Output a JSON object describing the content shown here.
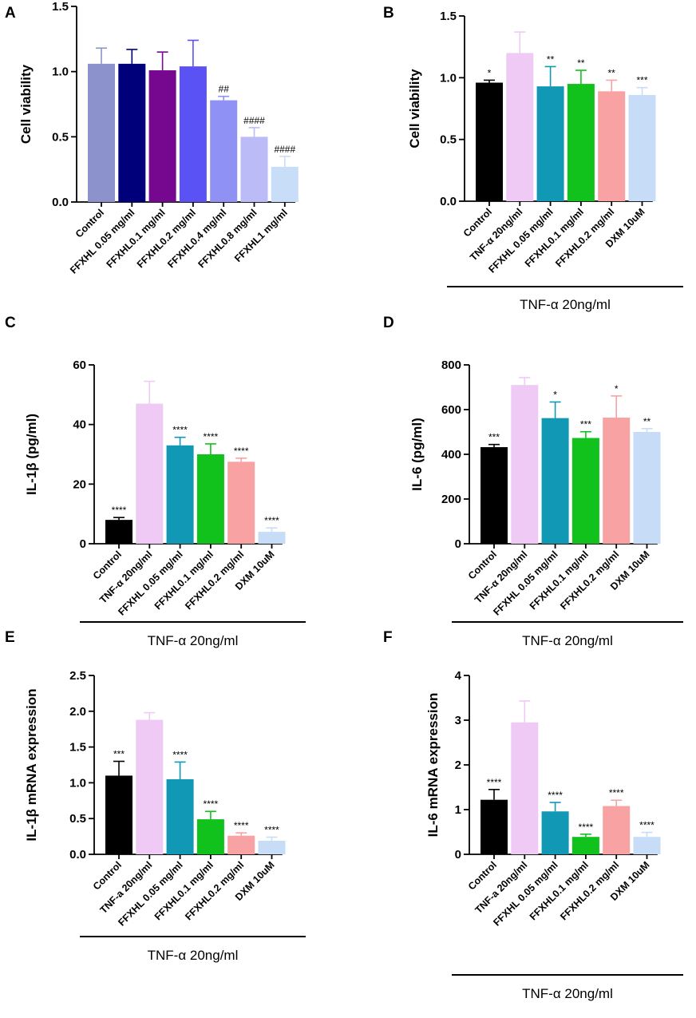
{
  "figure": {
    "background": "#ffffff"
  },
  "chart_data": [
    {
      "panel": "A",
      "type": "bar",
      "ylabel": "Cell viability",
      "ylim": [
        0,
        1.5
      ],
      "yticks": [
        "0.0",
        "0.5",
        "1.0",
        "1.5"
      ],
      "tick_values": [
        0,
        0.5,
        1.0,
        1.5
      ],
      "categories": [
        "Control",
        "FFXHL 0.05 mg/ml",
        "FFXHL0.1 mg/ml",
        "FFXHL0.2  mg/ml",
        "FFXHL0.4 mg/ml",
        "FFXHL0.8 mg/ml",
        "FFXHL1 mg/ml"
      ],
      "values": [
        1.06,
        1.06,
        1.01,
        1.04,
        0.78,
        0.5,
        0.27
      ],
      "errors": [
        0.12,
        0.11,
        0.14,
        0.2,
        0.03,
        0.07,
        0.08
      ],
      "significance": [
        "",
        "",
        "",
        "",
        "##",
        "####",
        "####"
      ],
      "colors": [
        "#8c93cc",
        "#00007a",
        "#76088f",
        "#5a52f5",
        "#8f91f5",
        "#bbbbf7",
        "#c8ddf7"
      ],
      "treatment_label": ""
    },
    {
      "panel": "B",
      "type": "bar",
      "ylabel": "Cell viability",
      "ylim": [
        0,
        1.5
      ],
      "yticks": [
        "0.0",
        "0.5",
        "1.0",
        "1.5"
      ],
      "tick_values": [
        0,
        0.5,
        1.0,
        1.5
      ],
      "categories": [
        "Control",
        "TNF-α 20ng/ml",
        "FFXHL 0.05 mg/ml",
        "FFXHL0.1 mg/ml",
        "FFXHL0.2 mg/ml",
        "DXM 10uM"
      ],
      "values": [
        0.96,
        1.2,
        0.93,
        0.95,
        0.89,
        0.86
      ],
      "errors": [
        0.02,
        0.17,
        0.16,
        0.11,
        0.09,
        0.06
      ],
      "significance": [
        "*",
        "",
        "**",
        "**",
        "**",
        "***"
      ],
      "colors": [
        "#000000",
        "#eecaf5",
        "#1198b5",
        "#10c21b",
        "#f9a2a3",
        "#c7ddf7"
      ],
      "treatment_label": "TNF-α 20ng/ml"
    },
    {
      "panel": "C",
      "type": "bar",
      "ylabel": "IL-1β (pg/ml)",
      "ylim": [
        0,
        60
      ],
      "yticks": [
        "0",
        "20",
        "40",
        "60"
      ],
      "tick_values": [
        0,
        20,
        40,
        60
      ],
      "categories": [
        "Control",
        "TNF-α 20ng/ml",
        "FFXHL 0.05 mg/ml",
        "FFXHL0.1 mg/ml",
        "FFXHL0.2 mg/ml",
        "DXM 10uM"
      ],
      "values": [
        8,
        47,
        33,
        30,
        27.5,
        4
      ],
      "errors": [
        0.8,
        7.5,
        2.7,
        3.5,
        1.2,
        1.3
      ],
      "significance": [
        "****",
        "",
        "****",
        "****",
        "****",
        "****"
      ],
      "colors": [
        "#000000",
        "#eecaf5",
        "#1198b5",
        "#10c21b",
        "#f9a2a3",
        "#c7ddf7"
      ],
      "treatment_label": "TNF-α 20ng/ml"
    },
    {
      "panel": "D",
      "type": "bar",
      "ylabel": "IL-6 (pg/ml)",
      "ylim": [
        0,
        800
      ],
      "yticks": [
        "0",
        "200",
        "400",
        "600",
        "800"
      ],
      "tick_values": [
        0,
        200,
        400,
        600,
        800
      ],
      "categories": [
        "Control",
        "TNF-α 20ng/ml",
        "FFXHL 0.05 mg/ml",
        "FFXHL0.1 mg/ml",
        "FFXHL0.2 mg/ml",
        "DXM 10uM"
      ],
      "values": [
        432,
        710,
        562,
        473,
        564,
        500
      ],
      "errors": [
        12,
        33,
        72,
        28,
        97,
        15
      ],
      "significance": [
        "***",
        "",
        "*",
        "***",
        "*",
        "**"
      ],
      "colors": [
        "#000000",
        "#eecaf5",
        "#1198b5",
        "#10c21b",
        "#f9a2a3",
        "#c7ddf7"
      ],
      "treatment_label": "TNF-α 20ng/ml"
    },
    {
      "panel": "E",
      "type": "bar",
      "ylabel": "IL-1β mRNA expression",
      "ylim": [
        0,
        2.5
      ],
      "yticks": [
        "0.0",
        "0.5",
        "1.0",
        "1.5",
        "2.0",
        "2.5"
      ],
      "tick_values": [
        0,
        0.5,
        1.0,
        1.5,
        2.0,
        2.5
      ],
      "categories": [
        "Control",
        "TNF-a 20ng/ml",
        "FFXHL 0.05 mg/ml",
        "FFXHL0.1 mg/ml",
        "FFXHL0.2 mg/ml",
        "DXM 10uM"
      ],
      "values": [
        1.1,
        1.88,
        1.05,
        0.49,
        0.26,
        0.19
      ],
      "errors": [
        0.2,
        0.1,
        0.24,
        0.11,
        0.04,
        0.05
      ],
      "significance": [
        "***",
        "",
        "****",
        "****",
        "****",
        "****"
      ],
      "colors": [
        "#000000",
        "#eecaf5",
        "#1198b5",
        "#10c21b",
        "#f9a2a3",
        "#c7ddf7"
      ],
      "treatment_label": "TNF-α 20ng/ml"
    },
    {
      "panel": "F",
      "type": "bar",
      "ylabel": "IL-6 mRNA expression",
      "ylim": [
        0,
        4
      ],
      "yticks": [
        "0",
        "1",
        "2",
        "3",
        "4"
      ],
      "tick_values": [
        0,
        1,
        2,
        3,
        4
      ],
      "categories": [
        "Control",
        "TNF-a 20ng/ml",
        "FFXHL 0.05 mg/ml",
        "FFXHL0.1 mg/ml",
        "FFXHL0.2 mg/ml",
        "DXM 10uM"
      ],
      "values": [
        1.22,
        2.95,
        0.96,
        0.39,
        1.08,
        0.39
      ],
      "errors": [
        0.23,
        0.48,
        0.2,
        0.06,
        0.13,
        0.1
      ],
      "significance": [
        "****",
        "",
        "****",
        "****",
        "****",
        "****"
      ],
      "colors": [
        "#000000",
        "#eecaf5",
        "#1198b5",
        "#10c21b",
        "#f9a2a3",
        "#c7ddf7"
      ],
      "treatment_label": "TNF-α 20ng/ml"
    }
  ]
}
